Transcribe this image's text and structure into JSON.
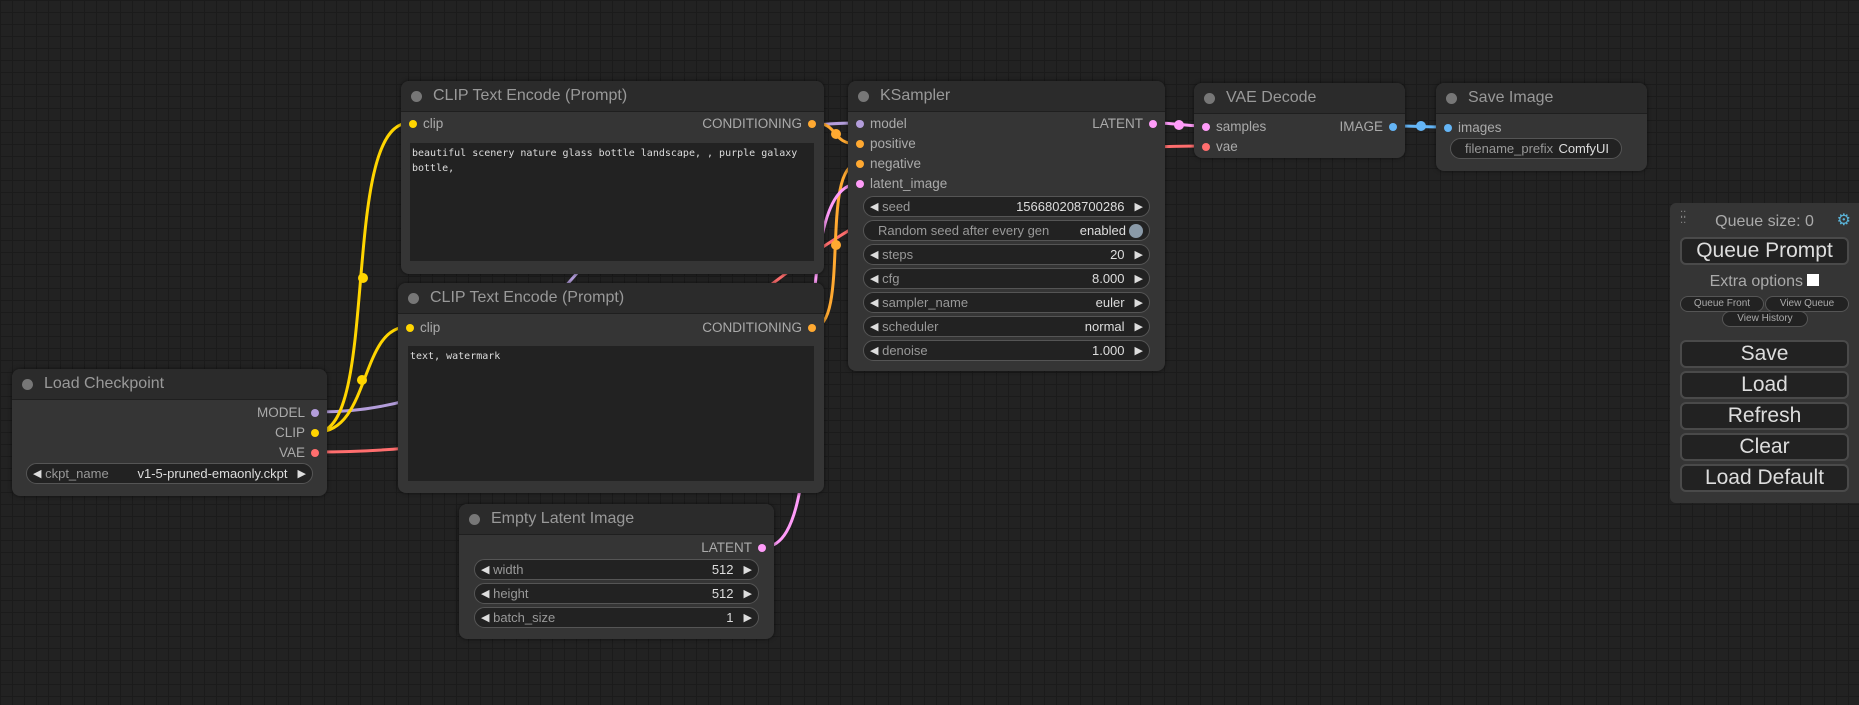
{
  "colors": {
    "model": "#b39ddb",
    "clip": "#ffd500",
    "vae": "#ff6e6e",
    "conditioning": "#ffa931",
    "latent": "#ff9cf9",
    "image": "#64b5f6"
  },
  "load_checkpoint": {
    "title": "Load Checkpoint",
    "outputs": [
      "MODEL",
      "CLIP",
      "VAE"
    ],
    "ckpt_name": {
      "label": "ckpt_name",
      "value": "v1-5-pruned-emaonly.ckpt"
    }
  },
  "clip_pos": {
    "title": "CLIP Text Encode (Prompt)",
    "input": "clip",
    "output": "CONDITIONING",
    "text": "beautiful scenery nature glass bottle landscape, , purple galaxy bottle,"
  },
  "clip_neg": {
    "title": "CLIP Text Encode (Prompt)",
    "input": "clip",
    "output": "CONDITIONING",
    "text": "text, watermark"
  },
  "empty_latent": {
    "title": "Empty Latent Image",
    "output": "LATENT",
    "widgets": [
      {
        "label": "width",
        "value": "512"
      },
      {
        "label": "height",
        "value": "512"
      },
      {
        "label": "batch_size",
        "value": "1"
      }
    ]
  },
  "ksampler": {
    "title": "KSampler",
    "inputs": [
      "model",
      "positive",
      "negative",
      "latent_image"
    ],
    "output": "LATENT",
    "seed": {
      "label": "seed",
      "value": "156680208700286"
    },
    "random_seed": {
      "label": "Random seed after every gen",
      "value": "enabled"
    },
    "widgets": [
      {
        "label": "steps",
        "value": "20"
      },
      {
        "label": "cfg",
        "value": "8.000"
      },
      {
        "label": "sampler_name",
        "value": "euler"
      },
      {
        "label": "scheduler",
        "value": "normal"
      },
      {
        "label": "denoise",
        "value": "1.000"
      }
    ]
  },
  "vae_decode": {
    "title": "VAE Decode",
    "inputs": [
      "samples",
      "vae"
    ],
    "output": "IMAGE"
  },
  "save_image": {
    "title": "Save Image",
    "input": "images",
    "filename_prefix": {
      "label": "filename_prefix",
      "value": "ComfyUI"
    }
  },
  "queue_panel": {
    "queue_size": "Queue size: 0",
    "queue_prompt": "Queue Prompt",
    "extra_options": "Extra options",
    "extra_options_checked": false,
    "queue_front": "Queue Front",
    "view_queue": "View Queue",
    "view_history": "View History",
    "buttons": [
      "Save",
      "Load",
      "Refresh",
      "Clear",
      "Load Default"
    ]
  }
}
